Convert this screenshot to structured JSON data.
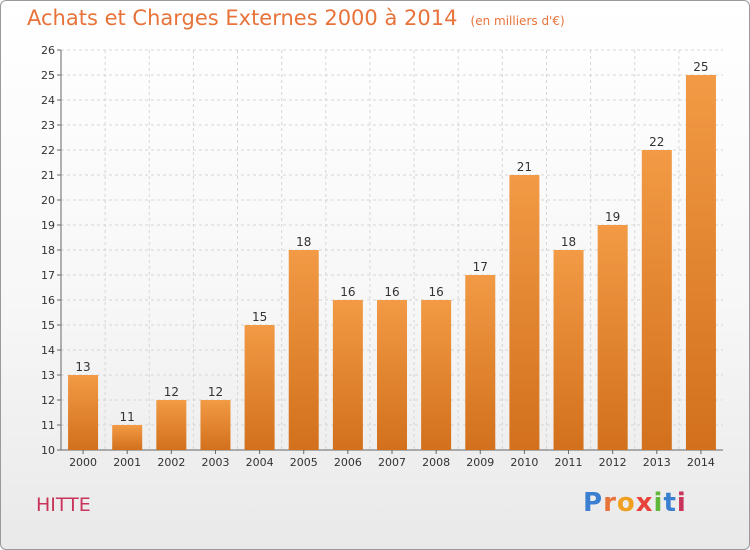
{
  "header": {
    "title": "Achats et Charges Externes 2000 à 2014",
    "unit": "(en milliers d'€)"
  },
  "footer": {
    "commune": "HITTE",
    "logo_letters": [
      "P",
      "r",
      "o",
      "x",
      "i",
      "t",
      "i"
    ],
    "logo_colors": [
      "#3b7fd0",
      "#e8733a",
      "#f0a020",
      "#e8433a",
      "#5fb83a",
      "#3b7fd0",
      "#c8345a"
    ]
  },
  "chart_data": {
    "type": "bar",
    "title": "Achats et Charges Externes 2000 à 2014",
    "subtitle": "(en milliers d'€)",
    "categories": [
      "2000",
      "2001",
      "2002",
      "2003",
      "2004",
      "2005",
      "2006",
      "2007",
      "2008",
      "2009",
      "2010",
      "2011",
      "2012",
      "2013",
      "2014"
    ],
    "values": [
      13,
      11,
      12,
      12,
      15,
      18,
      16,
      16,
      16,
      17,
      21,
      18,
      19,
      22,
      25
    ],
    "ylim": [
      10,
      26
    ],
    "yticks": [
      10,
      11,
      12,
      13,
      14,
      15,
      16,
      17,
      18,
      19,
      20,
      21,
      22,
      23,
      24,
      25,
      26
    ],
    "grid": true,
    "bar_color": "#f29a45",
    "bar_color_dark": "#d2701d"
  }
}
